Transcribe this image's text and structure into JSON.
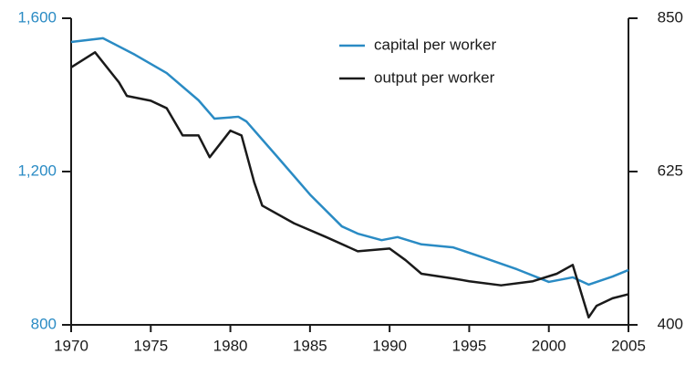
{
  "chart_data": {
    "type": "line",
    "x": [
      1970,
      1972,
      1974,
      1976,
      1978,
      1979,
      1980.5,
      1981,
      1983,
      1985,
      1987,
      1988,
      1989.5,
      1990.5,
      1992,
      1994,
      1996,
      1998,
      2000,
      2001.5,
      2002.5,
      2004,
      2005
    ],
    "series": [
      {
        "name": "capital per worker",
        "color": "#2a8bc4",
        "axis": "y",
        "values": [
          1538,
          1548,
          1505,
          1457,
          1386,
          1338,
          1343,
          1331,
          1236,
          1140,
          1057,
          1038,
          1021,
          1029,
          1010,
          1002,
          974,
          945,
          912,
          924,
          905,
          926,
          943
        ]
      },
      {
        "name": "output per worker",
        "color": "#1a1a1a",
        "axis": "y2",
        "x": [
          1970,
          1971.5,
          1973,
          1973.5,
          1975,
          1976,
          1977,
          1978,
          1978.7,
          1980,
          1980.7,
          1981.5,
          1982,
          1984,
          1986,
          1988,
          1990,
          1991,
          1992,
          1994,
          1995,
          1997,
          1999,
          2000.5,
          2001.5,
          2002.5,
          2003,
          2004,
          2005
        ],
        "values": [
          778,
          800,
          756,
          736,
          729,
          718,
          678,
          678,
          646,
          685,
          678,
          609,
          575,
          549,
          529,
          508,
          512,
          495,
          475,
          468,
          464,
          458,
          464,
          475,
          488,
          411,
          428,
          439,
          445
        ]
      }
    ],
    "xlim": [
      1970,
      2005
    ],
    "xticks": [
      1970,
      1975,
      1980,
      1985,
      1990,
      1995,
      2000,
      2005
    ],
    "ylim": [
      800,
      1600
    ],
    "yticks": [
      {
        "value": 800,
        "label": "800"
      },
      {
        "value": 1200,
        "label": "1,200"
      },
      {
        "value": 1600,
        "label": "1,600"
      }
    ],
    "y2lim": [
      400,
      850
    ],
    "y2ticks": [
      400,
      625,
      850
    ]
  }
}
